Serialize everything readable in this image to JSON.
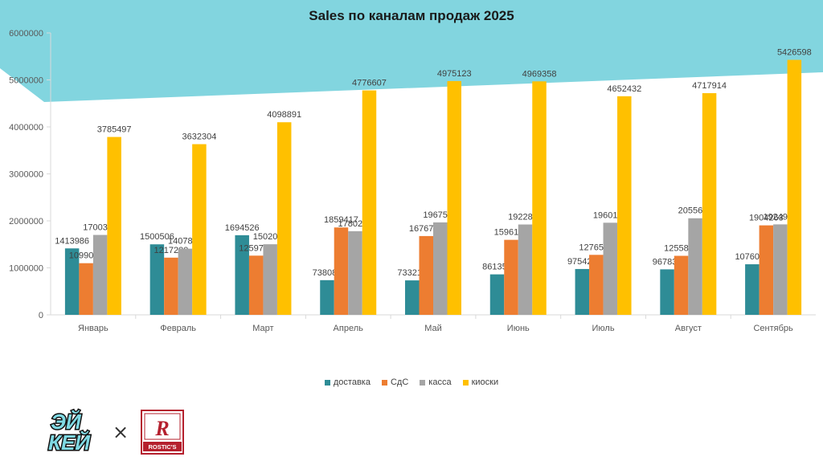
{
  "chart_data": {
    "type": "bar",
    "title": "Sales по каналам продаж 2025",
    "xlabel": "",
    "ylabel": "",
    "ylim": [
      0,
      6000000
    ],
    "yticks": [
      0,
      1000000,
      2000000,
      3000000,
      4000000,
      5000000,
      6000000
    ],
    "ytick_labels": [
      "0",
      "1000000",
      "2000000",
      "3000000",
      "4000000",
      "5000000",
      "6000000"
    ],
    "grid": false,
    "legend_position": "bottom",
    "categories": [
      "Январь",
      "Февраль",
      "Март",
      "Апрель",
      "Май",
      "Июнь",
      "Июль",
      "Август",
      "Сентябрь"
    ],
    "series": [
      {
        "name": "доставка",
        "color": "#2e8c96",
        "values": [
          1413986,
          1500506,
          1694526,
          738084,
          733212,
          861351,
          975425,
          967834,
          1076063
        ]
      },
      {
        "name": "СдС",
        "color": "#ed7d31",
        "values": [
          1099084,
          1217200,
          1259753,
          1859417,
          1676788,
          1596141,
          1276518,
          1255853,
          1904263
        ]
      },
      {
        "name": "касса",
        "color": "#a5a5a5",
        "values": [
          1700383,
          1407821,
          1502075,
          1780215,
          1967568,
          1922805,
          1960109,
          2055663,
          1924903
        ]
      },
      {
        "name": "киоски",
        "color": "#ffc000",
        "values": [
          3785497,
          3632304,
          4098891,
          4776607,
          4975123,
          4969358,
          4652432,
          4717914,
          5426598
        ]
      }
    ]
  },
  "banner": {
    "color": "#82d5df"
  },
  "logos": {
    "left": {
      "line1": "ЭЙ",
      "line2": "КЕЙ"
    },
    "separator": "×",
    "right": {
      "letter": "R",
      "text": "ROSTIC'S"
    }
  }
}
